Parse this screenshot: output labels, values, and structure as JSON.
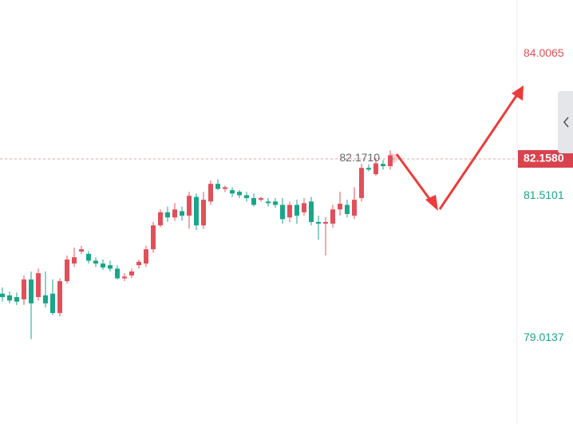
{
  "chart_data": {
    "type": "candlestick",
    "open": [
      79.79,
      79.76,
      79.73,
      79.69,
      80.04,
      79.73,
      79.76,
      79.79,
      79.45,
      80.01,
      80.32,
      80.53,
      80.49,
      80.37,
      80.32,
      80.29,
      80.23,
      80.06,
      80.11,
      80.29,
      80.32,
      80.57,
      80.99,
      81.22,
      81.13,
      81.24,
      81.16,
      81.49,
      80.99,
      81.41,
      81.72,
      81.63,
      81.61,
      81.58,
      81.52,
      81.47,
      81.44,
      81.41,
      81.41,
      81.35,
      81.13,
      81.35,
      81.22,
      81.41,
      81.05,
      81.02,
      81.02,
      81.27,
      81.35,
      81.16,
      81.47,
      82.0,
      81.89,
      82.07,
      82.03
    ],
    "high": [
      79.9,
      79.83,
      79.81,
      80.11,
      80.18,
      80.23,
      80.18,
      80.04,
      80.06,
      80.46,
      80.6,
      80.63,
      80.54,
      80.43,
      80.39,
      80.37,
      80.29,
      80.15,
      80.23,
      80.39,
      80.63,
      81.05,
      81.27,
      81.32,
      81.38,
      81.32,
      81.58,
      81.55,
      81.58,
      81.78,
      81.8,
      81.69,
      81.66,
      81.61,
      81.58,
      81.55,
      81.49,
      81.47,
      81.47,
      81.47,
      81.41,
      81.44,
      81.47,
      81.49,
      81.16,
      81.13,
      81.35,
      81.58,
      81.44,
      81.66,
      82.07,
      82.06,
      82.17,
      82.14,
      82.31
    ],
    "low": [
      79.65,
      79.62,
      79.59,
      79.59,
      78.99,
      79.67,
      79.55,
      79.41,
      79.39,
      79.97,
      80.26,
      80.49,
      80.32,
      80.26,
      80.21,
      80.18,
      80.04,
      80.01,
      80.06,
      80.23,
      80.26,
      80.51,
      80.96,
      81.05,
      81.07,
      81.07,
      80.93,
      80.91,
      80.93,
      81.35,
      81.61,
      81.58,
      81.49,
      81.47,
      81.41,
      81.32,
      81.41,
      81.32,
      81.3,
      81.02,
      81.05,
      81.02,
      81.16,
      80.99,
      80.74,
      80.46,
      80.95,
      81.16,
      81.13,
      81.1,
      81.41,
      81.94,
      81.86,
      81.97,
      81.97
    ],
    "close": [
      79.73,
      79.67,
      79.65,
      80.04,
      79.62,
      80.15,
      79.62,
      79.45,
      80.01,
      80.39,
      80.43,
      80.57,
      80.37,
      80.32,
      80.25,
      80.23,
      80.06,
      80.09,
      80.18,
      80.35,
      80.57,
      80.99,
      81.22,
      81.13,
      81.27,
      81.16,
      81.51,
      80.99,
      81.44,
      81.72,
      81.63,
      81.66,
      81.55,
      81.52,
      81.47,
      81.35,
      81.47,
      81.38,
      81.35,
      81.1,
      81.35,
      81.16,
      81.38,
      81.05,
      81.02,
      81.05,
      81.27,
      81.37,
      81.19,
      81.44,
      82.0,
      81.97,
      82.08,
      82.03,
      82.22
    ],
    "up_color": "#e0505a",
    "down_color": "#1aa58a",
    "ylim": [
      77.5,
      84.95
    ],
    "yticks": [
      84.0065,
      81.5101,
      79.0137
    ],
    "current_price": {
      "value": 82.158,
      "label": "82.1580"
    },
    "annotation": {
      "value": 82.171,
      "label": "82.1710"
    }
  }
}
